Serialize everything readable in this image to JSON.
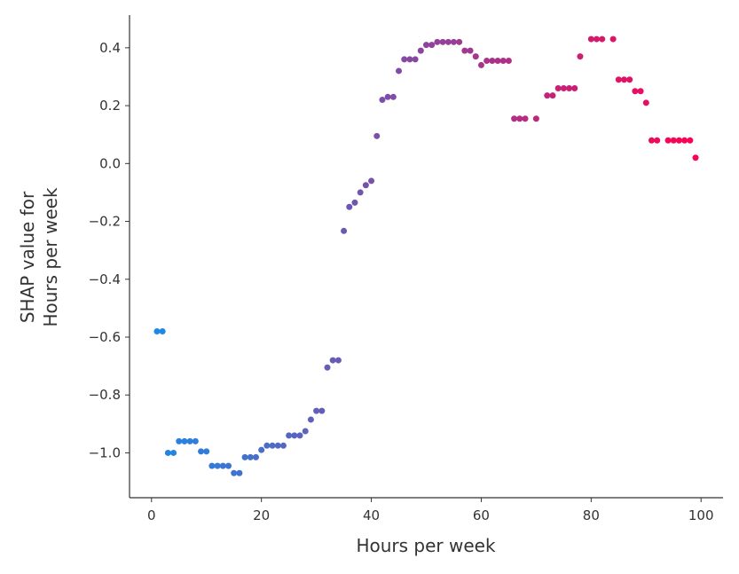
{
  "chart_data": {
    "type": "scatter",
    "xlabel": "Hours per week",
    "ylabel": [
      "SHAP value for",
      "Hours per week"
    ],
    "x": [
      1,
      2,
      3,
      4,
      5,
      6,
      7,
      8,
      9,
      10,
      11,
      12,
      13,
      14,
      15,
      16,
      17,
      18,
      19,
      20,
      21,
      22,
      23,
      24,
      25,
      26,
      27,
      28,
      29,
      30,
      31,
      32,
      33,
      34,
      35,
      36,
      37,
      38,
      39,
      40,
      41,
      42,
      43,
      44,
      45,
      46,
      47,
      48,
      49,
      50,
      51,
      52,
      53,
      54,
      55,
      56,
      57,
      58,
      59,
      60,
      61,
      62,
      63,
      64,
      65,
      66,
      67,
      68,
      70,
      72,
      73,
      74,
      75,
      76,
      77,
      78,
      80,
      81,
      82,
      84,
      85,
      86,
      87,
      88,
      89,
      90,
      91,
      92,
      94,
      95,
      96,
      97,
      98,
      99
    ],
    "values": [
      -0.58,
      -0.58,
      -1.0,
      -1.0,
      -0.96,
      -0.96,
      -0.96,
      -0.96,
      -0.995,
      -0.995,
      -1.045,
      -1.045,
      -1.045,
      -1.045,
      -1.07,
      -1.07,
      -1.015,
      -1.015,
      -1.015,
      -0.99,
      -0.975,
      -0.975,
      -0.975,
      -0.975,
      -0.94,
      -0.94,
      -0.94,
      -0.925,
      -0.885,
      -0.855,
      -0.855,
      -0.705,
      -0.68,
      -0.68,
      -0.233,
      -0.15,
      -0.135,
      -0.1,
      -0.075,
      -0.06,
      0.095,
      0.22,
      0.23,
      0.23,
      0.32,
      0.36,
      0.36,
      0.36,
      0.39,
      0.41,
      0.41,
      0.42,
      0.42,
      0.42,
      0.42,
      0.42,
      0.39,
      0.39,
      0.37,
      0.34,
      0.355,
      0.355,
      0.355,
      0.355,
      0.355,
      0.155,
      0.155,
      0.155,
      0.155,
      0.235,
      0.235,
      0.26,
      0.26,
      0.26,
      0.26,
      0.37,
      0.43,
      0.43,
      0.43,
      0.43,
      0.29,
      0.29,
      0.29,
      0.25,
      0.25,
      0.21,
      0.08,
      0.08,
      0.08,
      0.08,
      0.08,
      0.08,
      0.08,
      0.02
    ],
    "color_range": [
      "#1e88e5",
      "#ff0052"
    ],
    "xlim": [
      -4,
      104
    ],
    "ylim": [
      -1.155,
      0.513
    ],
    "xticks": [
      0,
      20,
      40,
      60,
      80,
      100
    ],
    "yticks": [
      0.4,
      0.2,
      {
        "value": 0,
        "label": "0.0"
      },
      {
        "value": -0.2,
        "label": "−0.2"
      },
      {
        "value": -0.4,
        "label": "−0.4"
      },
      {
        "value": -0.6,
        "label": "−0.6"
      },
      {
        "value": -0.8,
        "label": "−0.8"
      },
      {
        "value": -1.0,
        "label": "−1.0"
      }
    ]
  }
}
